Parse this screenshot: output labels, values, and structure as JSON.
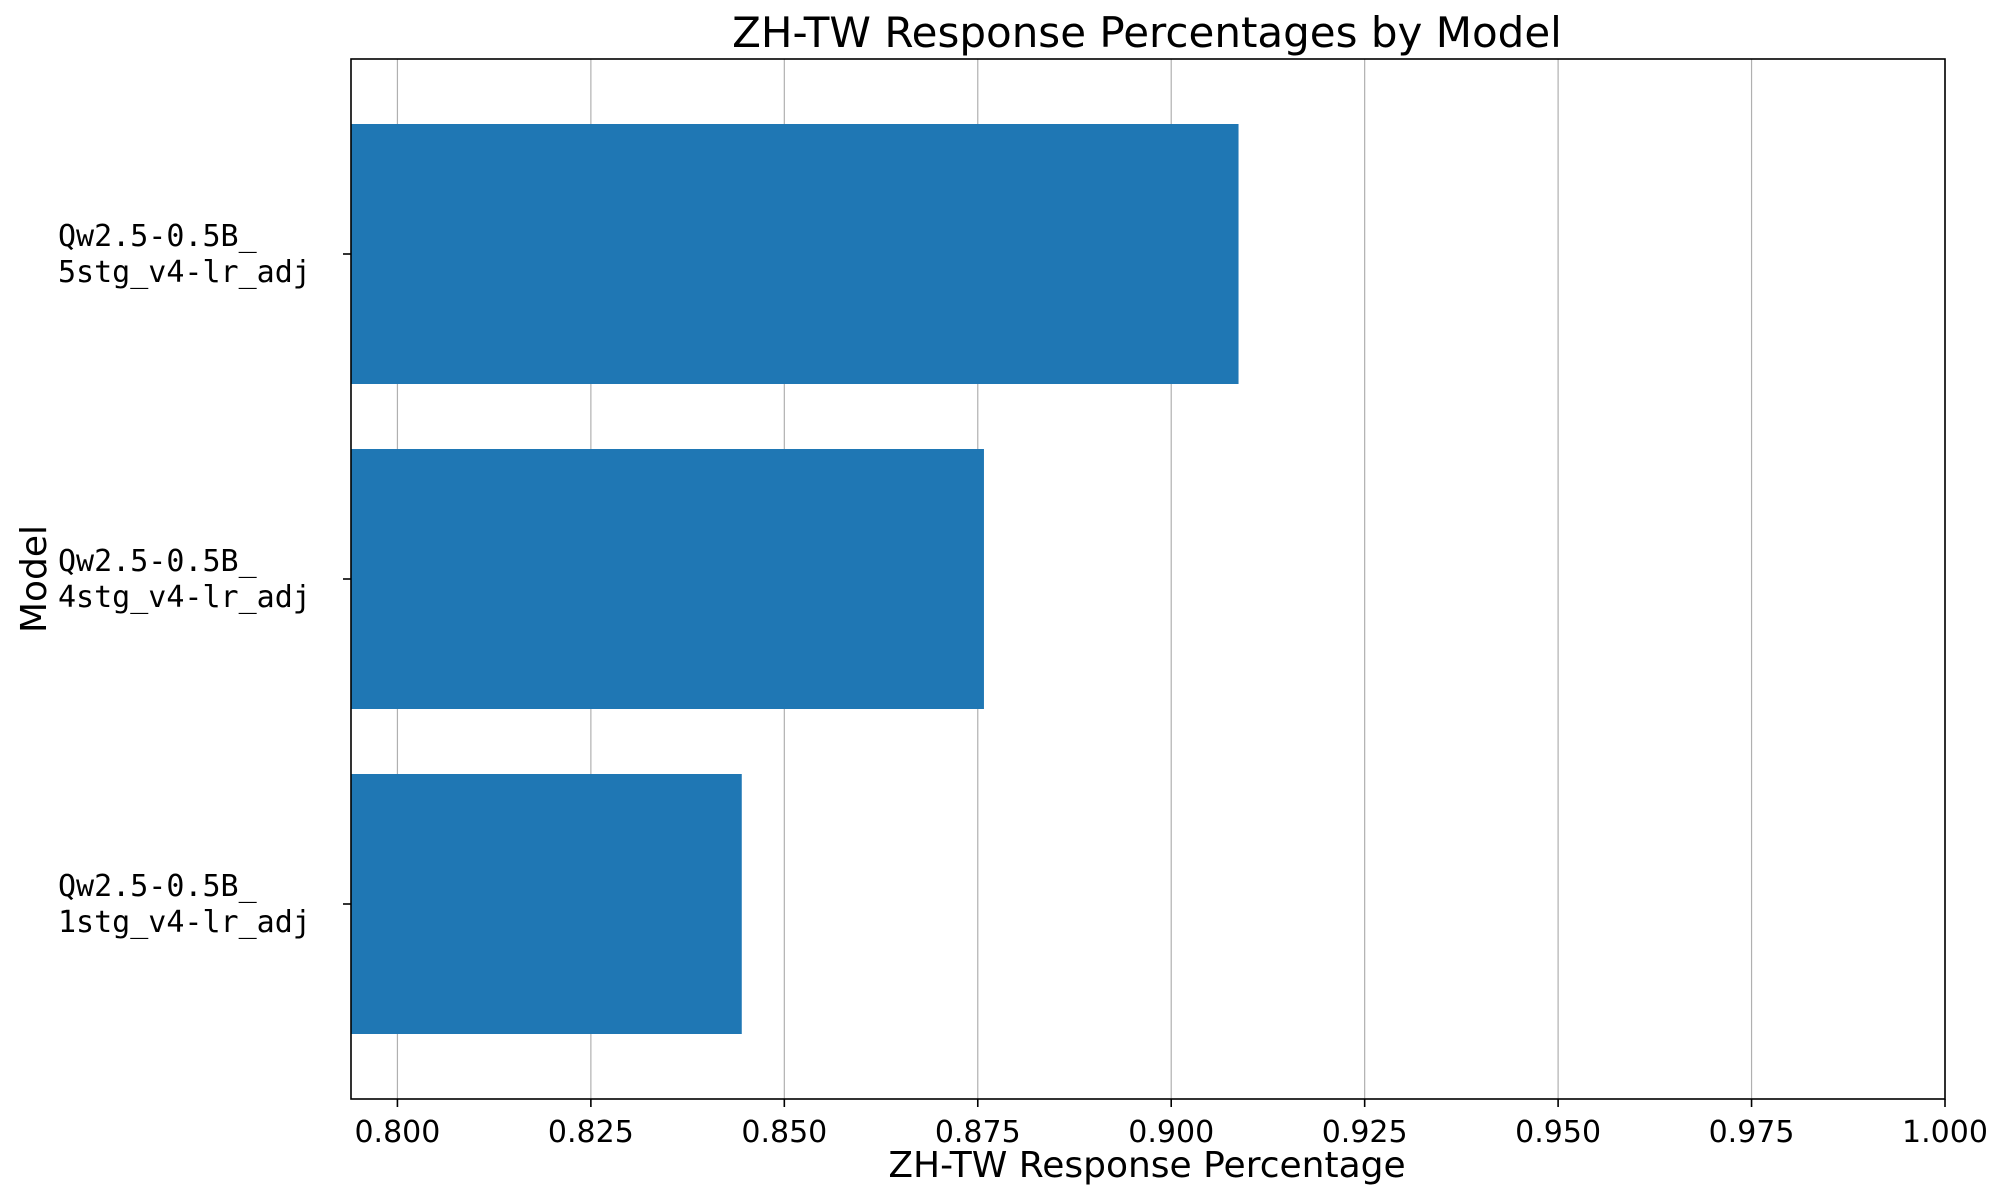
{
  "chart_data": {
    "type": "bar",
    "orientation": "horizontal",
    "title": "ZH-TW Response Percentages by Model",
    "xlabel": "ZH-TW Response Percentage",
    "ylabel": "Model",
    "categories": [
      [
        "Qw2.5-0.5B_",
        "1stg_v4-lr_adj"
      ],
      [
        "Qw2.5-0.5B_",
        "4stg_v4-lr_adj"
      ],
      [
        "Qw2.5-0.5B_",
        "5stg_v4-lr_adj"
      ]
    ],
    "values": [
      0.8445,
      0.8758,
      0.9087
    ],
    "xlim": [
      0.794,
      1.0
    ],
    "xticks": [
      0.8,
      0.825,
      0.85,
      0.875,
      0.9,
      0.925,
      0.95,
      0.975,
      1.0
    ],
    "xtick_labels": [
      "0.800",
      "0.825",
      "0.850",
      "0.875",
      "0.900",
      "0.925",
      "0.950",
      "0.975",
      "1.000"
    ],
    "grid": "x-major",
    "bar_color": "#1f77b4"
  }
}
